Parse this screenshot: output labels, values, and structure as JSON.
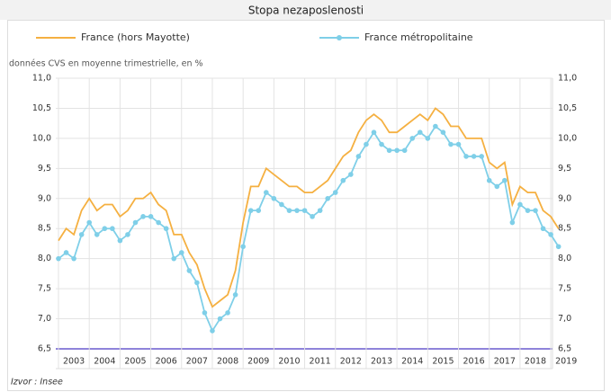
{
  "chart_data": {
    "type": "line",
    "title": "Stopa nezaposlenosti",
    "subtitle": "données CVS en moyenne trimestrielle, en %",
    "source": "Izvor : Insee",
    "x": [
      2003,
      2003.25,
      2003.5,
      2003.75,
      2004,
      2004.25,
      2004.5,
      2004.75,
      2005,
      2005.25,
      2005.5,
      2005.75,
      2006,
      2006.25,
      2006.5,
      2006.75,
      2007,
      2007.25,
      2007.5,
      2007.75,
      2008,
      2008.25,
      2008.5,
      2008.75,
      2009,
      2009.25,
      2009.5,
      2009.75,
      2010,
      2010.25,
      2010.5,
      2010.75,
      2011,
      2011.25,
      2011.5,
      2011.75,
      2012,
      2012.25,
      2012.5,
      2012.75,
      2013,
      2013.25,
      2013.5,
      2013.75,
      2014,
      2014.25,
      2014.5,
      2014.75,
      2015,
      2015.25,
      2015.5,
      2015.75,
      2016,
      2016.25,
      2016.5,
      2016.75,
      2017,
      2017.25,
      2017.5,
      2017.75,
      2018,
      2018.25,
      2018.5,
      2018.75,
      2019,
      2019.25
    ],
    "series": [
      {
        "name": "France (hors Mayotte)",
        "color": "#f5b041",
        "marker": false,
        "values": [
          8.3,
          8.5,
          8.4,
          8.8,
          9.0,
          8.8,
          8.9,
          8.9,
          8.7,
          8.8,
          9.0,
          9.0,
          9.1,
          8.9,
          8.8,
          8.4,
          8.4,
          8.1,
          7.9,
          7.5,
          7.2,
          7.3,
          7.4,
          7.8,
          8.6,
          9.2,
          9.2,
          9.5,
          9.4,
          9.3,
          9.2,
          9.2,
          9.1,
          9.1,
          9.2,
          9.3,
          9.5,
          9.7,
          9.8,
          10.1,
          10.3,
          10.4,
          10.3,
          10.1,
          10.1,
          10.2,
          10.3,
          10.4,
          10.3,
          10.5,
          10.4,
          10.2,
          10.2,
          10.0,
          10.0,
          10.0,
          9.6,
          9.5,
          9.6,
          8.9,
          9.2,
          9.1,
          9.1,
          8.8,
          8.7,
          8.5
        ]
      },
      {
        "name": "France métropolitaine",
        "color": "#7fcfe8",
        "marker": true,
        "values": [
          8.0,
          8.1,
          8.0,
          8.4,
          8.6,
          8.4,
          8.5,
          8.5,
          8.3,
          8.4,
          8.6,
          8.7,
          8.7,
          8.6,
          8.5,
          8.0,
          8.1,
          7.8,
          7.6,
          7.1,
          6.8,
          7.0,
          7.1,
          7.4,
          8.2,
          8.8,
          8.8,
          9.1,
          9.0,
          8.9,
          8.8,
          8.8,
          8.8,
          8.7,
          8.8,
          9.0,
          9.1,
          9.3,
          9.4,
          9.7,
          9.9,
          10.1,
          9.9,
          9.8,
          9.8,
          9.8,
          10.0,
          10.1,
          10.0,
          10.2,
          10.1,
          9.9,
          9.9,
          9.7,
          9.7,
          9.7,
          9.3,
          9.2,
          9.3,
          8.6,
          8.9,
          8.8,
          8.8,
          8.5,
          8.4,
          8.2
        ]
      }
    ],
    "xlim": [
      2003,
      2020
    ],
    "xticks": [
      2003,
      2004,
      2005,
      2006,
      2007,
      2008,
      2009,
      2010,
      2011,
      2012,
      2013,
      2014,
      2015,
      2016,
      2017,
      2018,
      2019
    ],
    "ylim": [
      6.5,
      11
    ],
    "yticks": [
      {
        "value": 6.5,
        "label": "6,5"
      },
      {
        "value": 7,
        "label": "7,0"
      },
      {
        "value": 7.5,
        "label": "7,5"
      },
      {
        "value": 8,
        "label": "8,0"
      },
      {
        "value": 8.5,
        "label": "8,5"
      },
      {
        "value": 9,
        "label": "9,0"
      },
      {
        "value": 9.5,
        "label": "9,5"
      },
      {
        "value": 10,
        "label": "10,0"
      },
      {
        "value": 10.5,
        "label": "10,5"
      },
      {
        "value": 11,
        "label": "11,0"
      }
    ],
    "grid": true
  }
}
